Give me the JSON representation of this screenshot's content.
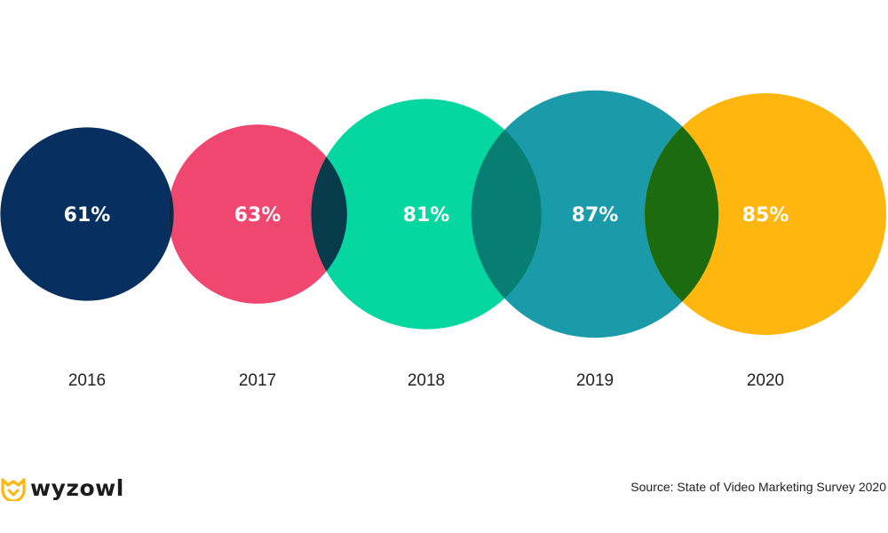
{
  "chart_data": {
    "type": "bubble",
    "title": "",
    "categories": [
      "2016",
      "2017",
      "2018",
      "2019",
      "2020"
    ],
    "values": [
      61,
      63,
      81,
      87,
      85
    ],
    "value_labels": [
      "61%",
      "63%",
      "81%",
      "87%",
      "85%"
    ],
    "unit": "%",
    "colors": [
      "#072f5f",
      "#ef476f",
      "#06d6a0",
      "#1b9aaa",
      "#ffb60f"
    ],
    "overlap_colors": [
      "#0a2a47",
      "#073b4c",
      "#087e72",
      "#1d6b0f"
    ],
    "legend": "none",
    "grid": false
  },
  "brand": {
    "name": "wyzowl",
    "icon": "wyzowl-owl-icon",
    "icon_color": "#ffb60f"
  },
  "footer": {
    "source": "Source: State of Video Marketing Survey 2020"
  }
}
